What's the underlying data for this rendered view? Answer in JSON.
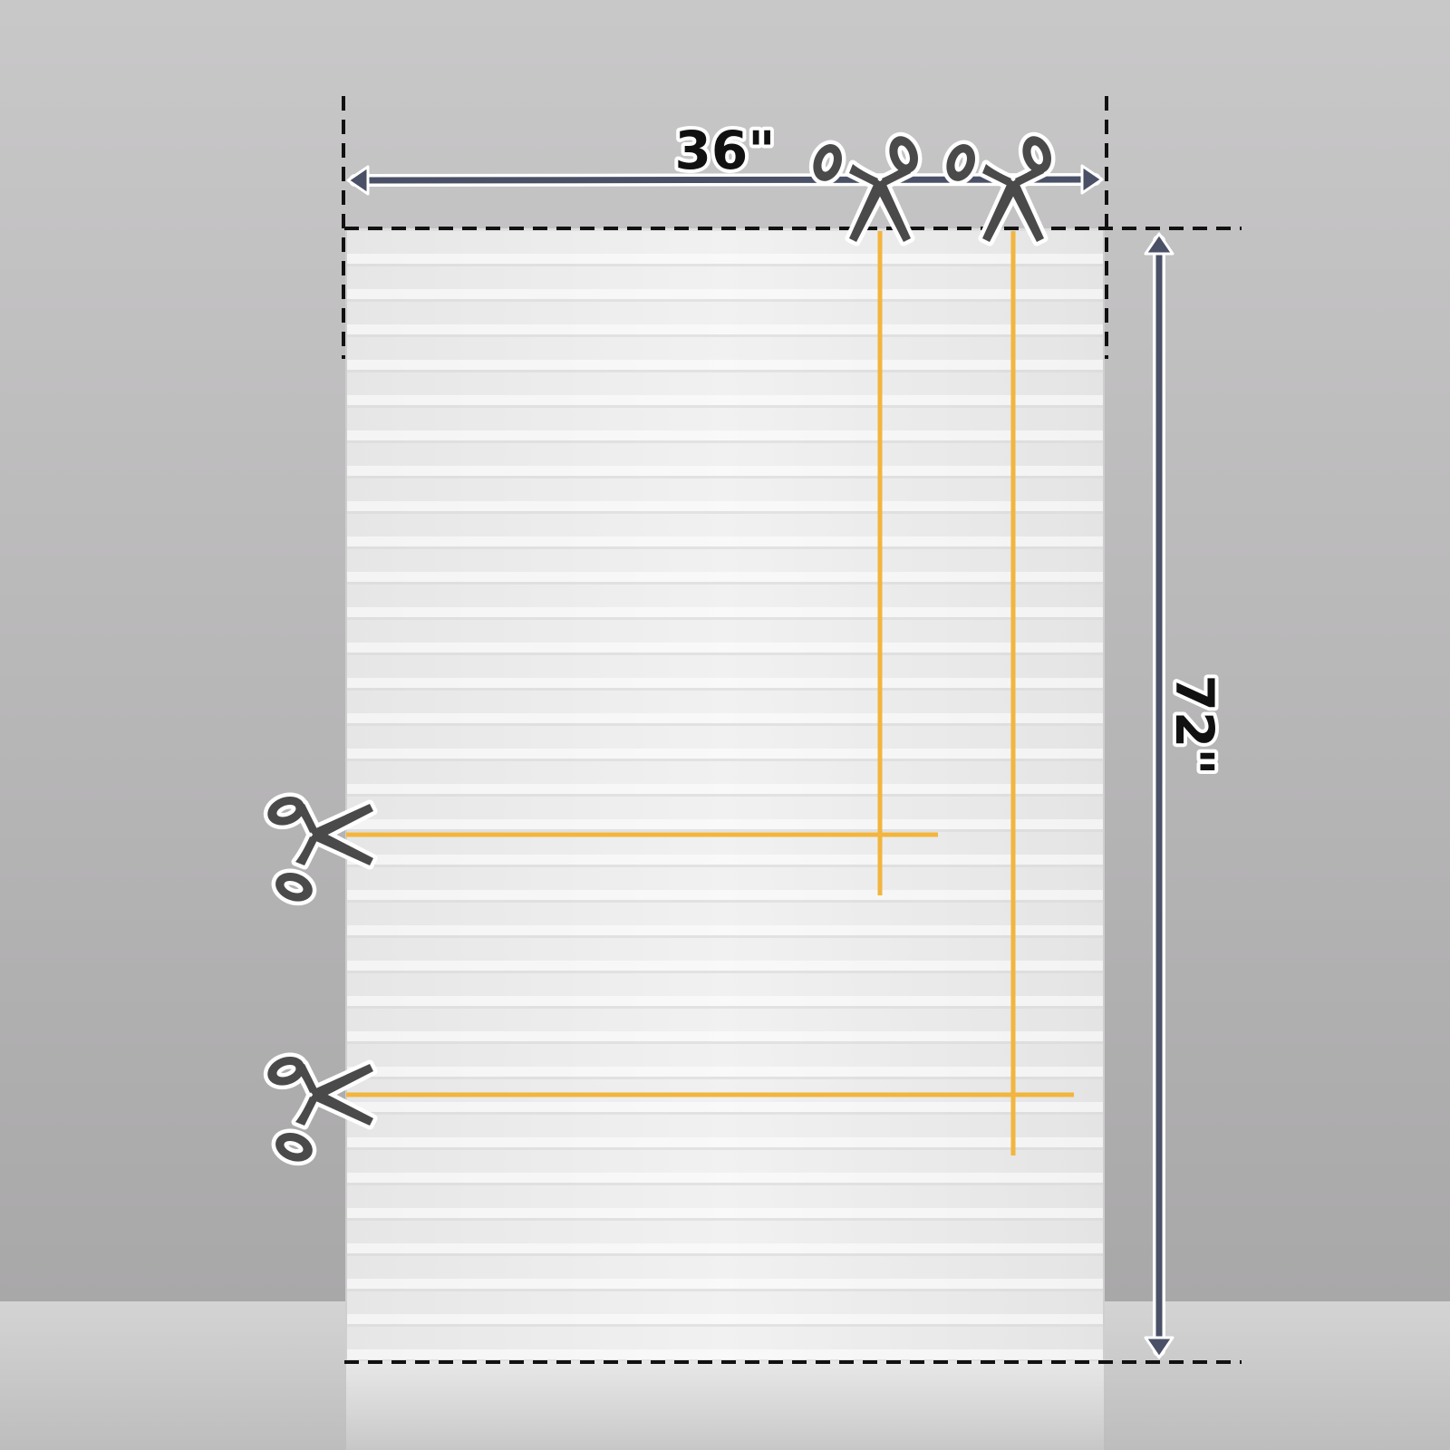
{
  "dimensions": {
    "width_label": "36\"",
    "height_label": "72\""
  },
  "icons": {
    "cut_marks": [
      "scissors-icon",
      "scissors-icon",
      "scissors-icon",
      "scissors-icon"
    ]
  },
  "colors": {
    "wall_top": "#c9c8c9",
    "wall_bottom": "#a9a8a9",
    "floor": "#cfcfcf",
    "shade": "#eeeeee",
    "cut_line": "#f2b53d",
    "dimension_arrow": "#4a5066",
    "guide_line": "#111111",
    "scissors": "#4a4a4a"
  }
}
